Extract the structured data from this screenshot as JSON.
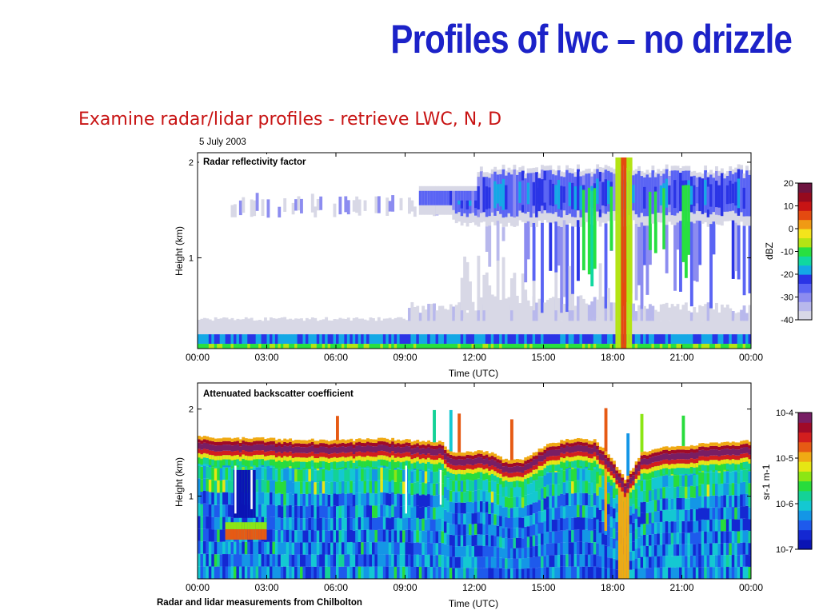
{
  "slide": {
    "title": "Profiles of lwc – no drizzle",
    "subtitle": "Examine radar/lidar profiles - retrieve LWC, N, D",
    "date": "5 July 2003",
    "footer": "Radar and lidar measurements from Chilbolton"
  },
  "chart_data": [
    {
      "type": "heatmap",
      "title": "Radar reflectivity factor",
      "xlabel": "Time (UTC)",
      "ylabel": "Height (km)",
      "x_ticks": [
        "00:00",
        "03:00",
        "06:00",
        "09:00",
        "12:00",
        "15:00",
        "18:00",
        "21:00",
        "00:00"
      ],
      "xlim_hours": [
        0,
        24
      ],
      "y_ticks": [
        "1",
        "2"
      ],
      "y_tick_values": [
        1,
        2
      ],
      "ylim_km": [
        0.05,
        2.1
      ],
      "colorbar": {
        "label": "dBZ",
        "ticks": [
          "20",
          "10",
          "0",
          "-10",
          "-20",
          "-30",
          "-40"
        ],
        "range": [
          -40,
          20
        ],
        "colors": [
          "#d8d8e6",
          "#b8b8ec",
          "#8c8cf0",
          "#5a64f4",
          "#2a34e6",
          "#14a8e6",
          "#10d8a0",
          "#28e040",
          "#b4e414",
          "#f4e41c",
          "#f09a14",
          "#e44a10",
          "#c81414",
          "#960a1e",
          "#6e1440"
        ]
      },
      "layers": [
        {
          "name": "surface layer",
          "t_start": 0,
          "t_end": 24,
          "h_base": 0.05,
          "h_top": 0.2,
          "dbz": -20
        },
        {
          "name": "surface haze",
          "t_start": 0,
          "t_end": 24,
          "h_base": 0.2,
          "h_top": 0.35,
          "dbz": -40
        },
        {
          "name": "boundary layer cloud",
          "t_start": 10.5,
          "t_end": 24,
          "h_base": 1.3,
          "h_top": 2.0,
          "dbz": -25
        },
        {
          "name": "thin cloud",
          "t_start": 1,
          "t_end": 10.5,
          "h_base": 1.45,
          "h_top": 1.65,
          "dbz": -38
        },
        {
          "name": "convective column",
          "t_start": 18.1,
          "t_end": 18.7,
          "h_base": 0.05,
          "h_top": 2.05,
          "dbz": 0
        }
      ]
    },
    {
      "type": "heatmap",
      "title": "Attenuated backscatter coefficient",
      "xlabel": "Time (UTC)",
      "ylabel": "Height (km)",
      "x_ticks": [
        "00:00",
        "03:00",
        "06:00",
        "09:00",
        "12:00",
        "15:00",
        "18:00",
        "21:00",
        "00:00"
      ],
      "xlim_hours": [
        0,
        24
      ],
      "y_ticks": [
        "1",
        "2"
      ],
      "y_tick_values": [
        1,
        2
      ],
      "ylim_km": [
        0.05,
        2.3
      ],
      "colorbar": {
        "label": "sr-1 m-1",
        "ticks": [
          "10-4",
          "10-5",
          "10-6",
          "10-7"
        ],
        "log_range": [
          -7,
          -4
        ],
        "colors": [
          "#0a14b4",
          "#1428d2",
          "#1e5aec",
          "#1496e6",
          "#14c8d2",
          "#14d296",
          "#28dc3c",
          "#8ce614",
          "#e6e614",
          "#f0aa14",
          "#e65a14",
          "#d21e1e",
          "#a00a28",
          "#781e64"
        ]
      },
      "cloud_base_km": [
        {
          "t": 0,
          "h": 1.48
        },
        {
          "t": 3,
          "h": 1.46
        },
        {
          "t": 6,
          "h": 1.44
        },
        {
          "t": 8,
          "h": 1.46
        },
        {
          "t": 10.5,
          "h": 1.42
        },
        {
          "t": 11,
          "h": 1.3
        },
        {
          "t": 12,
          "h": 1.32
        },
        {
          "t": 12.8,
          "h": 1.3
        },
        {
          "t": 13.3,
          "h": 1.22
        },
        {
          "t": 14,
          "h": 1.22
        },
        {
          "t": 15,
          "h": 1.38
        },
        {
          "t": 16,
          "h": 1.46
        },
        {
          "t": 17.2,
          "h": 1.44
        },
        {
          "t": 18,
          "h": 1.2
        },
        {
          "t": 18.5,
          "h": 0.98
        },
        {
          "t": 19.2,
          "h": 1.3
        },
        {
          "t": 20,
          "h": 1.36
        },
        {
          "t": 22,
          "h": 1.4
        },
        {
          "t": 24,
          "h": 1.44
        }
      ]
    }
  ]
}
